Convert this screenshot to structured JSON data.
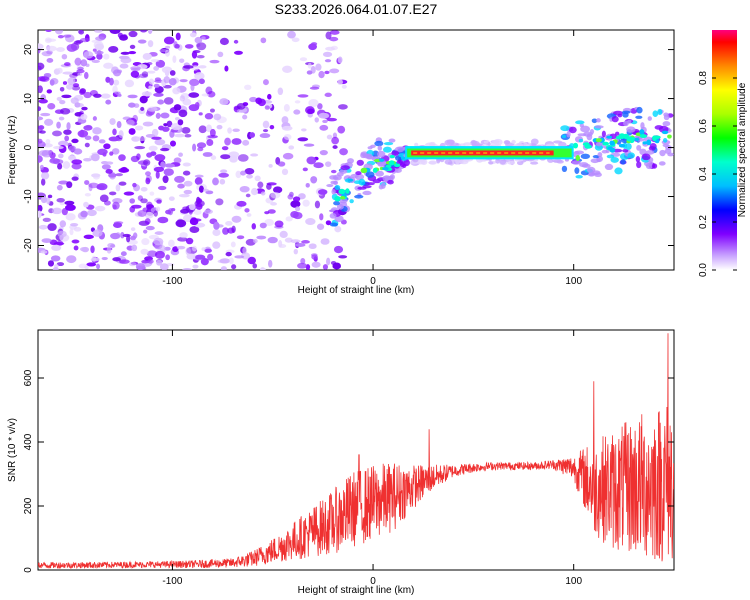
{
  "chart_data": [
    {
      "type": "heatmap",
      "title": "S233.2026.064.01.07.E27",
      "xlabel": "Height of straight line (km)",
      "ylabel": "Frequency (Hz)",
      "xlim": [
        -167,
        150
      ],
      "ylim": [
        -25,
        24
      ],
      "xticks": [
        -100,
        0,
        100
      ],
      "yticks": [
        -20,
        -10,
        0,
        10,
        20
      ],
      "colorbar": {
        "label": "Normalized spectral amplitude",
        "range": [
          0.0,
          1.0
        ],
        "ticks": [
          "0.0",
          "0.2",
          "0.4",
          "0.6",
          "0.8"
        ],
        "tick_values": [
          0.0,
          0.2,
          0.4,
          0.6,
          0.8
        ]
      },
      "ridge": {
        "x": [
          -20,
          -15,
          -10,
          -5,
          0,
          5,
          10,
          15,
          20,
          40,
          60,
          80,
          100,
          110,
          120,
          130,
          140,
          150
        ],
        "y": [
          -11,
          -9,
          -7,
          -5,
          -4,
          -3,
          -3,
          -2,
          -1,
          -1,
          -1,
          -1,
          -1,
          0,
          1,
          2,
          2,
          3
        ]
      },
      "noise_region_x": [
        -167,
        -20
      ]
    },
    {
      "type": "line",
      "xlabel": "Height of straight line (km)",
      "ylabel": "SNR (10 * v/v)",
      "xlim": [
        -167,
        150
      ],
      "ylim": [
        0,
        750
      ],
      "xticks": [
        -100,
        0,
        100
      ],
      "yticks": [
        0,
        200,
        400,
        600
      ],
      "series": [
        {
          "name": "SNR",
          "color": "#ef3030",
          "x": [
            -167,
            -150,
            -130,
            -110,
            -90,
            -70,
            -60,
            -50,
            -40,
            -30,
            -20,
            -10,
            0,
            10,
            20,
            30,
            40,
            50,
            60,
            70,
            80,
            90,
            100,
            110,
            120,
            130,
            140,
            150
          ],
          "center": [
            15,
            15,
            16,
            17,
            18,
            22,
            35,
            60,
            90,
            120,
            150,
            190,
            210,
            230,
            260,
            290,
            310,
            320,
            325,
            325,
            325,
            330,
            320,
            260,
            250,
            260,
            270,
            280
          ],
          "spread": [
            10,
            10,
            10,
            10,
            12,
            15,
            25,
            40,
            60,
            80,
            100,
            120,
            120,
            110,
            70,
            40,
            20,
            15,
            12,
            12,
            12,
            15,
            40,
            150,
            190,
            220,
            250,
            260
          ],
          "peaks": [
            {
              "x": 147,
              "y": 740
            },
            {
              "x": 110,
              "y": 590
            },
            {
              "x": -7,
              "y": 360
            },
            {
              "x": 28,
              "y": 440
            }
          ]
        }
      ]
    }
  ]
}
